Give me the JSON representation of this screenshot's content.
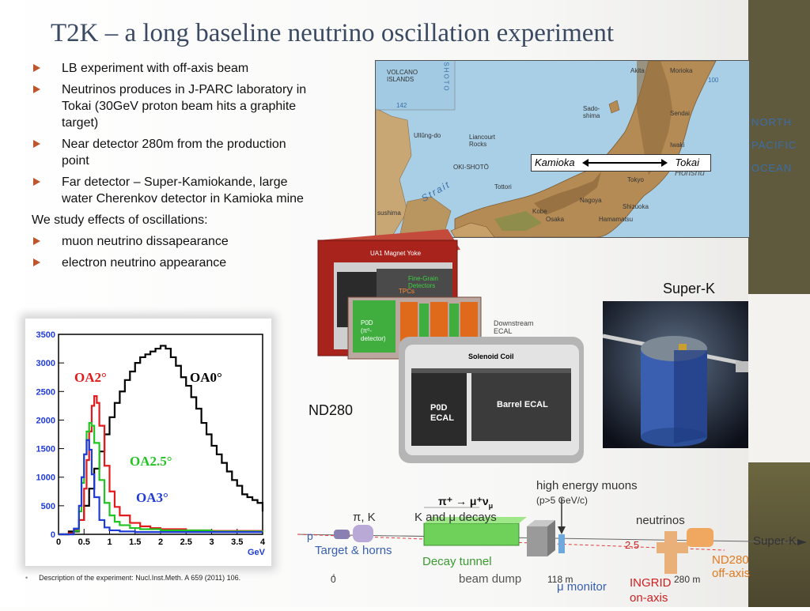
{
  "slide": {
    "title": "T2K – a long baseline neutrino oscillation experiment",
    "bullets_top": [
      "LB experiment with off-axis beam",
      "Neutrinos produces in J-PARC laboratory in Tokai (30GeV proton beam hits a graphite target)",
      "Near detector 280m from the production point",
      "Far detector – Super-Kamiokande, large water Cherenkov detector in Kamioka mine"
    ],
    "plain_text": "We study effects of oscillations:",
    "bullets_bottom": [
      "muon neutrino dissapearance",
      "electron neutrino appearance"
    ],
    "footnote": "Description of the experiment: Nucl.Inst.Meth. A 659 (2011) 106."
  },
  "map": {
    "route_from": "Kamioka",
    "route_to": "Tokai",
    "ocean_lines": [
      "NORTH",
      "PACIFIC",
      "OCEAN"
    ],
    "labels": {
      "volcano": "VOLCANO\nISLANDS",
      "shoto": "SHOTO",
      "ullung": "Ullŭng-do",
      "liancourt": "Liancourt\nRocks",
      "oki": "OKI-SHOTŌ",
      "sado": "Sado-\nshima",
      "sendai": "Sendai",
      "iwaki": "Iwaki",
      "tokyo": "Tokyo",
      "nagoya": "Nagoya",
      "kobe": "Kobe",
      "osaka": "Osaka",
      "tottori": "Tottori",
      "hamamatsu": "Hamamatsu",
      "shizuoka": "Shizuoka",
      "akita": "Akita",
      "morioka": "Morioka",
      "honshu": "Honshu",
      "strait": "Strait",
      "kyushu": "sushima",
      "numbers": [
        "142",
        "100"
      ]
    }
  },
  "nd280": {
    "caption": "ND280",
    "labels": {
      "yoke": "UA1 Magnet Yoke",
      "fgd": "Fine-Grain\nDetectors",
      "tpc": "TPCs",
      "p0d": "P0D\n(π⁰-\ndetector)",
      "downstream": "Downstream\nECAL",
      "coil": "Solenoid Coil",
      "p0d_ecal": "P0D\nECAL",
      "barrel": "Barrel ECAL"
    }
  },
  "superk": {
    "caption": "Super-K"
  },
  "beamline": {
    "labels": {
      "pik": "π, K",
      "p": "p",
      "target": "Target & horns",
      "decay_eq": "π⁺ → μ⁺ν",
      "decay_eq_sub": "μ",
      "k_mu": "K and μ decays",
      "decay_tunnel": "Decay tunnel",
      "beam_dump": "beam dump",
      "high_energy": "high energy muons",
      "high_energy_sub": "(p>5 GeV/c)",
      "neutrinos": "neutrinos",
      "angle": "2.5",
      "superk": "Super-K",
      "nd280": "ND280\noff-axis",
      "ingrid": "INGRID\non-axis",
      "mu_monitor": "μ monitor",
      "zero": "0",
      "m118": "118 m",
      "m280": "280 m"
    },
    "colors": {
      "decay_tunnel": "#6fd05a",
      "ingrid": "#cc1f1f",
      "text_blue": "#3960b0"
    }
  },
  "chart_data": {
    "type": "line",
    "xlabel": "GeV",
    "xlim": [
      0,
      4
    ],
    "ylim": [
      0,
      3500
    ],
    "x_ticks": [
      "0",
      "0.5",
      "1",
      "1.5",
      "2",
      "2.5",
      "3",
      "3.5",
      "4"
    ],
    "y_ticks": [
      "0",
      "500",
      "1000",
      "1500",
      "2000",
      "2500",
      "3000",
      "3500"
    ],
    "series": [
      {
        "name": "OA0°",
        "color": "#000000",
        "x": [
          0,
          0.2,
          0.4,
          0.5,
          0.6,
          0.7,
          0.8,
          0.9,
          1.0,
          1.1,
          1.2,
          1.3,
          1.4,
          1.5,
          1.6,
          1.7,
          1.8,
          1.9,
          2.0,
          2.1,
          2.2,
          2.3,
          2.4,
          2.5,
          2.6,
          2.7,
          2.8,
          2.9,
          3.0,
          3.1,
          3.2,
          3.3,
          3.4,
          3.5,
          3.6,
          3.7,
          3.8,
          3.9,
          4.0
        ],
        "y": [
          0,
          50,
          250,
          500,
          800,
          1150,
          1450,
          1750,
          2050,
          2300,
          2500,
          2700,
          2850,
          3000,
          3100,
          3150,
          3200,
          3250,
          3300,
          3250,
          3100,
          2950,
          2750,
          2600,
          2400,
          2200,
          1950,
          1750,
          1550,
          1400,
          1250,
          1100,
          950,
          850,
          700,
          650,
          600,
          550,
          400
        ]
      },
      {
        "name": "OA2°",
        "color": "#e31a1c",
        "x": [
          0,
          0.2,
          0.3,
          0.4,
          0.5,
          0.55,
          0.6,
          0.65,
          0.7,
          0.75,
          0.8,
          0.9,
          1.0,
          1.1,
          1.2,
          1.4,
          1.6,
          1.8,
          2.0,
          2.5,
          3.0,
          3.5,
          4.0
        ],
        "y": [
          0,
          20,
          80,
          250,
          800,
          1300,
          1800,
          2250,
          2420,
          2300,
          1900,
          1200,
          750,
          480,
          330,
          200,
          140,
          110,
          90,
          70,
          60,
          60,
          50
        ]
      },
      {
        "name": "OA2.5°",
        "color": "#22c422",
        "x": [
          0,
          0.3,
          0.4,
          0.45,
          0.5,
          0.55,
          0.6,
          0.65,
          0.7,
          0.8,
          0.9,
          1.0,
          1.1,
          1.2,
          1.4,
          1.6,
          2.0,
          3.0,
          4.0
        ],
        "y": [
          0,
          60,
          400,
          900,
          1400,
          1800,
          1950,
          1900,
          1600,
          950,
          550,
          330,
          220,
          160,
          110,
          90,
          70,
          50,
          40
        ]
      },
      {
        "name": "OA3°",
        "color": "#1f3bd6",
        "x": [
          0,
          0.3,
          0.4,
          0.45,
          0.5,
          0.55,
          0.6,
          0.65,
          0.7,
          0.8,
          0.9,
          1.0,
          1.2,
          1.5,
          2.0,
          3.0,
          4.0
        ],
        "y": [
          0,
          100,
          500,
          1000,
          1400,
          1650,
          1480,
          1050,
          650,
          250,
          120,
          70,
          50,
          40,
          40,
          40,
          40
        ]
      }
    ],
    "annotations": [
      {
        "text": "OA2°",
        "color": "#e31a1c"
      },
      {
        "text": "OA0°",
        "color": "#000000"
      },
      {
        "text": "OA2.5°",
        "color": "#22c422"
      },
      {
        "text": "OA3°",
        "color": "#1f3bd6"
      }
    ]
  }
}
